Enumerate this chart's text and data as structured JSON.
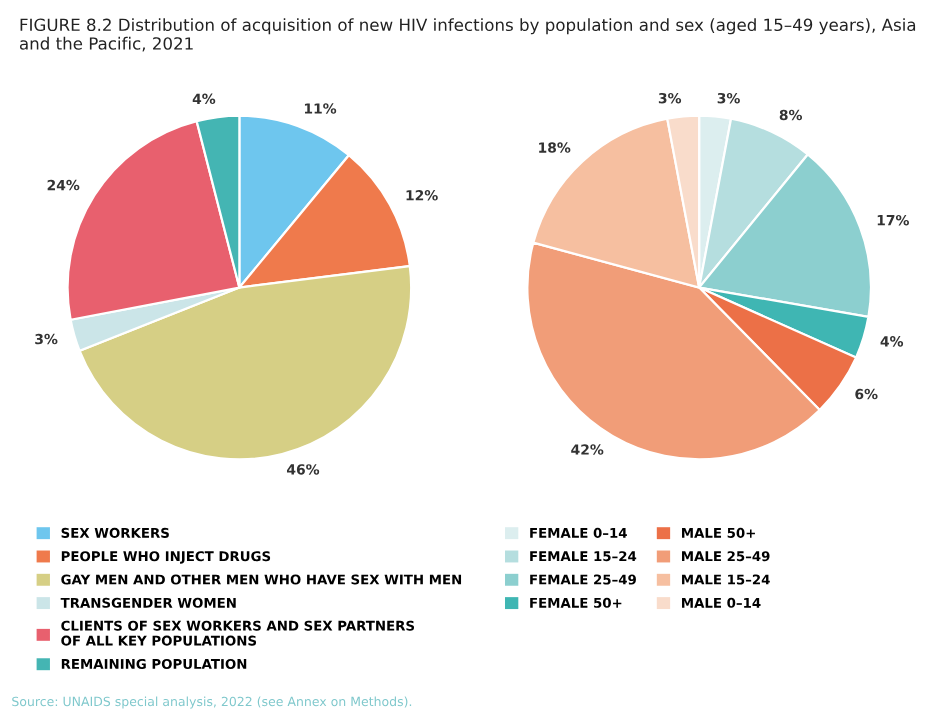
{
  "chart_data": [
    {
      "type": "pie",
      "title": "FIGURE 8.2 Distribution of acquisition of new HIV infections by population and sex (aged 15–49 years), Asia and the Pacific, 2021",
      "categories": [
        "SEX WORKERS",
        "PEOPLE WHO INJECT DRUGS",
        "GAY MEN AND OTHER MEN WHO HAVE SEX WITH MEN",
        "TRANSGENDER WOMEN",
        "CLIENTS OF SEX WORKERS AND SEX PARTNERS\nOF ALL KEY POPULATIONS",
        "REMAINING POPULATION"
      ],
      "values": [
        11,
        12,
        46,
        3,
        24,
        4
      ],
      "value_labels": [
        "11%",
        "12%",
        "46%",
        "3%",
        "24%",
        "4%"
      ],
      "colors": [
        "#6ec6ee",
        "#ef7a4c",
        "#d6cf85",
        "#cbe5e8",
        "#e8606e",
        "#44b5b3"
      ],
      "legend": "bottom",
      "annotations": [
        "Source: UNAIDS special analysis, 2022 (see Annex on Methods)."
      ]
    },
    {
      "type": "pie",
      "categories": [
        "FEMALE 0–14",
        "FEMALE 15–24",
        "FEMALE 25–49",
        "FEMALE 50+",
        "MALE 50+",
        "MALE 25–49",
        "MALE 15–24",
        "MALE 0–14"
      ],
      "values": [
        3,
        8,
        17,
        4,
        6,
        42,
        18,
        3
      ],
      "value_labels": [
        "3%",
        "8%",
        "17%",
        "4%",
        "6%",
        "42%",
        "18%",
        "3%"
      ],
      "colors": [
        "#dceeef",
        "#b5dedf",
        "#8ccfcf",
        "#3fb6b3",
        "#ec7047",
        "#f19d78",
        "#f6bfa0",
        "#f9dccb"
      ],
      "legend": "bottom"
    }
  ]
}
